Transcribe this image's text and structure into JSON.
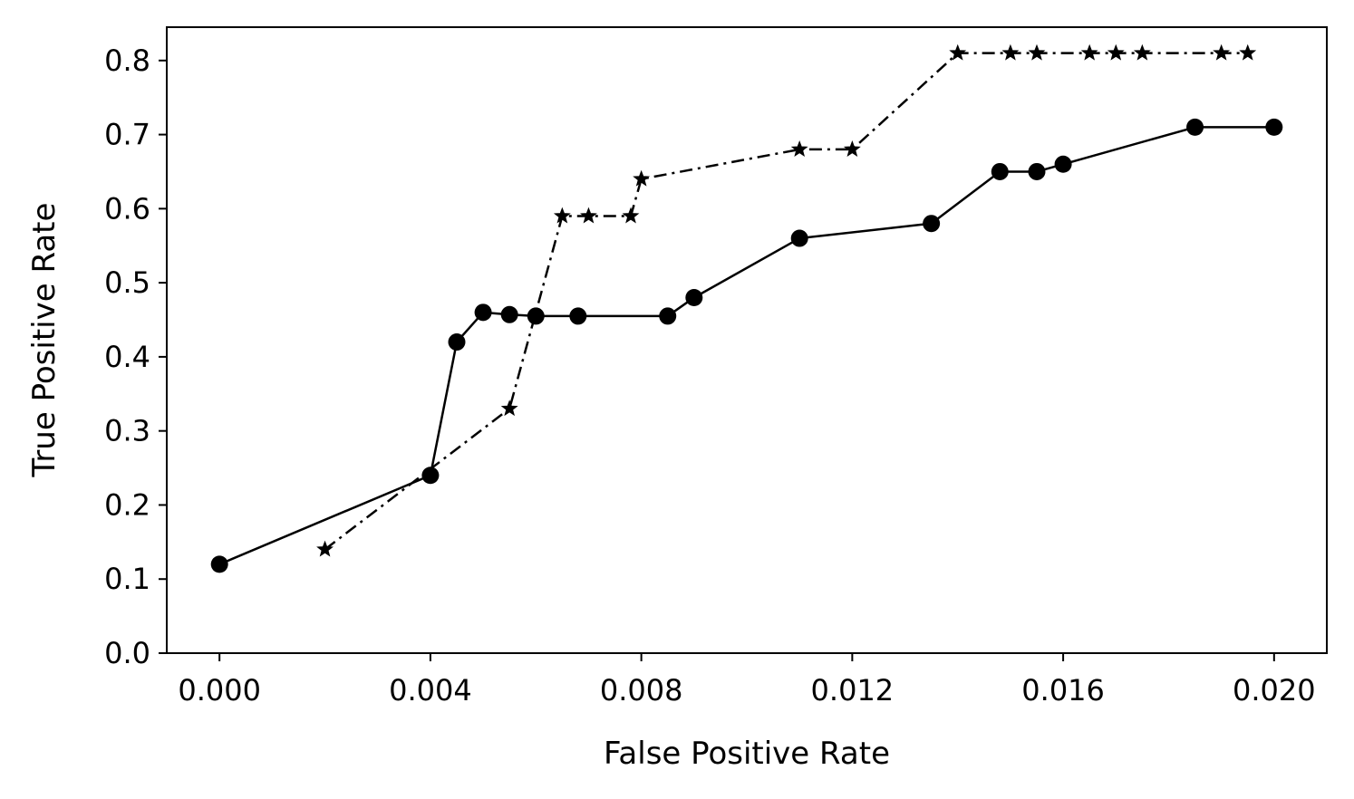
{
  "chart_data": {
    "type": "line",
    "title": "",
    "xlabel": "False Positive Rate",
    "ylabel": "True Positive Rate",
    "xlim": [
      -0.001,
      0.021
    ],
    "ylim": [
      0.0,
      0.845
    ],
    "x_ticks": [
      0.0,
      0.004,
      0.008,
      0.012,
      0.016,
      0.02
    ],
    "x_tick_labels": [
      "0.000",
      "0.004",
      "0.008",
      "0.012",
      "0.016",
      "0.020"
    ],
    "y_ticks": [
      0.0,
      0.1,
      0.2,
      0.3,
      0.4,
      0.5,
      0.6,
      0.7,
      0.8
    ],
    "y_tick_labels": [
      "0.0",
      "0.1",
      "0.2",
      "0.3",
      "0.4",
      "0.5",
      "0.6",
      "0.7",
      "0.8"
    ],
    "grid": false,
    "legend": "none",
    "series": [
      {
        "marker": "circle",
        "line_style": "solid",
        "color": "#000000",
        "points": [
          [
            0.0,
            0.12
          ],
          [
            0.004,
            0.24
          ],
          [
            0.0045,
            0.42
          ],
          [
            0.005,
            0.46
          ],
          [
            0.0055,
            0.457
          ],
          [
            0.006,
            0.455
          ],
          [
            0.0068,
            0.455
          ],
          [
            0.0085,
            0.455
          ],
          [
            0.009,
            0.48
          ],
          [
            0.011,
            0.56
          ],
          [
            0.0135,
            0.58
          ],
          [
            0.0148,
            0.65
          ],
          [
            0.0155,
            0.65
          ],
          [
            0.016,
            0.66
          ],
          [
            0.0185,
            0.71
          ],
          [
            0.02,
            0.71
          ]
        ]
      },
      {
        "marker": "star",
        "line_style": "dashdot",
        "color": "#000000",
        "points": [
          [
            0.002,
            0.14
          ],
          [
            0.0055,
            0.33
          ],
          [
            0.0065,
            0.59
          ],
          [
            0.007,
            0.59
          ],
          [
            0.0078,
            0.59
          ],
          [
            0.008,
            0.64
          ],
          [
            0.011,
            0.68
          ],
          [
            0.012,
            0.68
          ],
          [
            0.014,
            0.81
          ],
          [
            0.015,
            0.81
          ],
          [
            0.0155,
            0.81
          ],
          [
            0.0165,
            0.81
          ],
          [
            0.017,
            0.81
          ],
          [
            0.0175,
            0.81
          ],
          [
            0.019,
            0.81
          ],
          [
            0.0195,
            0.81
          ]
        ]
      }
    ]
  }
}
